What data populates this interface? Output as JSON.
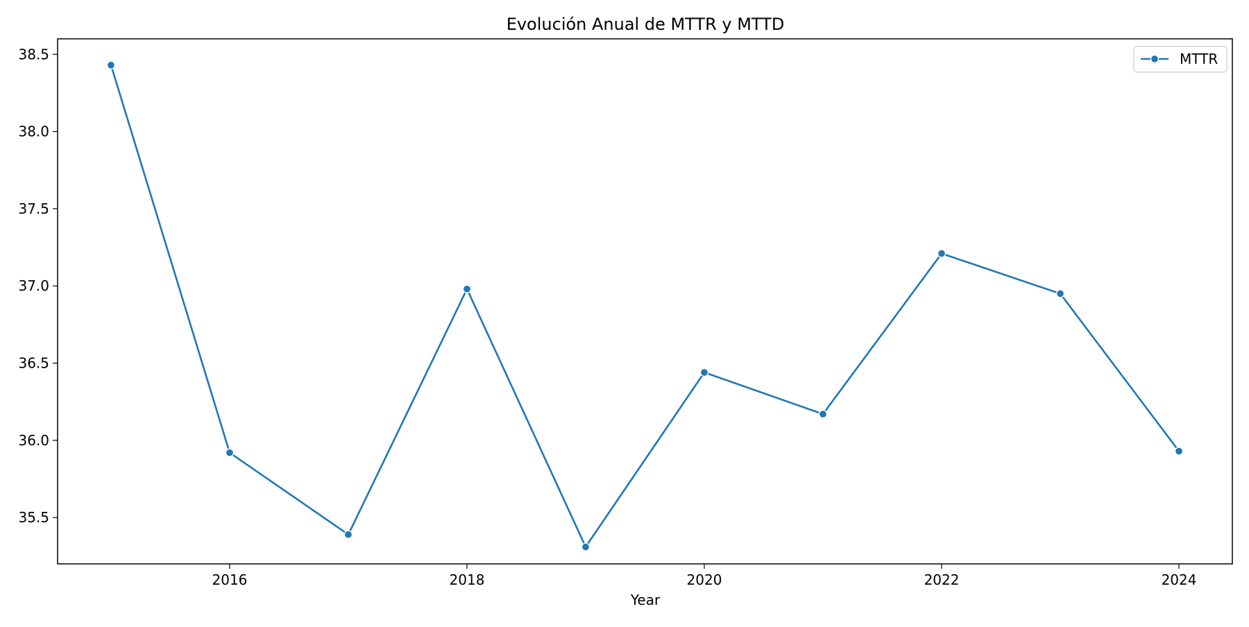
{
  "chart_data": {
    "type": "line",
    "title": "Evolución Anual de MTTR y MTTD",
    "xlabel": "Year",
    "ylabel": "",
    "x": [
      2015,
      2016,
      2017,
      2018,
      2019,
      2020,
      2021,
      2022,
      2023,
      2024
    ],
    "series": [
      {
        "name": "MTTR",
        "values": [
          38.43,
          35.92,
          35.39,
          36.98,
          35.31,
          36.44,
          36.17,
          37.21,
          36.95,
          35.93
        ],
        "color": "#1f77b4"
      }
    ],
    "xlim": [
      2014.55,
      2024.45
    ],
    "ylim": [
      35.2,
      38.6
    ],
    "xticks": [
      2016,
      2018,
      2020,
      2022,
      2024
    ],
    "yticks": [
      "35.5",
      "36.0",
      "36.5",
      "37.0",
      "37.5",
      "38.0",
      "38.5"
    ],
    "grid": false,
    "legend_position": "upper right"
  }
}
